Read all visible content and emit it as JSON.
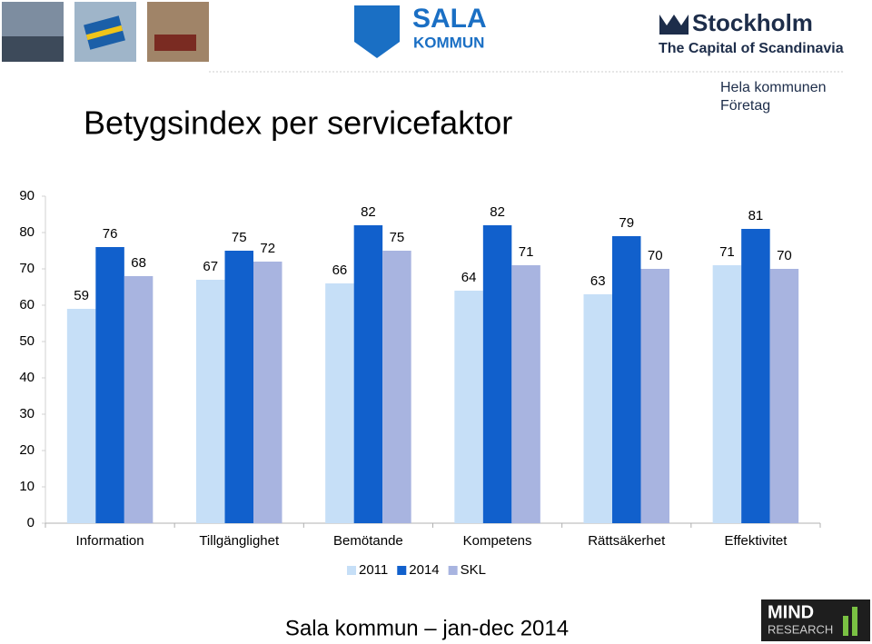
{
  "header": {
    "logo_left_top": "SALA",
    "logo_left_bottom": "KOMMUN",
    "logo_right_top": "Stockholm",
    "logo_right_bottom": "The Capital of Scandinavia",
    "scope_line_1": "Hela kommunen",
    "scope_line_2": "Företag"
  },
  "chart_data": {
    "type": "bar",
    "title": "Betygsindex per servicefaktor",
    "categories": [
      "Information",
      "Tillgänglighet",
      "Bemötande",
      "Kompetens",
      "Rättsäkerhet",
      "Effektivitet"
    ],
    "series": [
      {
        "name": "2011",
        "color": "#c6dff7",
        "values": [
          59,
          67,
          66,
          64,
          63,
          71
        ]
      },
      {
        "name": "2014",
        "color": "#1160cc",
        "values": [
          76,
          75,
          82,
          82,
          79,
          81
        ]
      },
      {
        "name": "SKL",
        "color": "#a8b4e0",
        "values": [
          68,
          72,
          75,
          71,
          70,
          70
        ]
      }
    ],
    "ylim": [
      0,
      90
    ],
    "yticks": [
      0,
      10,
      20,
      30,
      40,
      50,
      60,
      70,
      80,
      90
    ],
    "grid": false,
    "legend": "bottom"
  },
  "footer": {
    "caption": "Sala kommun – jan-dec 2014",
    "logo_top": "MIND",
    "logo_bottom": "RESEARCH"
  }
}
